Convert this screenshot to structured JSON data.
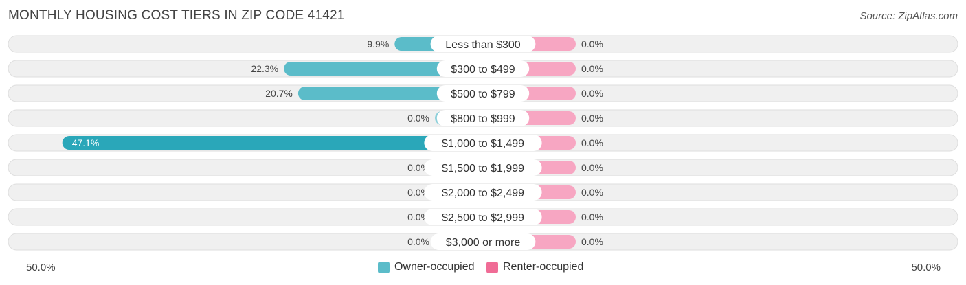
{
  "title": "MONTHLY HOUSING COST TIERS IN ZIP CODE 41421",
  "source": "Source: ZipAtlas.com",
  "axis": {
    "left_label": "50.0%",
    "right_label": "50.0%"
  },
  "legend": {
    "owner_label": "Owner-occupied",
    "renter_label": "Renter-occupied"
  },
  "colors": {
    "owner": "#5bbcc9",
    "owner_dark": "#2aa7b9",
    "owner_light": "#8dd0da",
    "renter": "#f7a6c2",
    "renter_swatch": "#f06c96",
    "row_bg": "#f0f0f0",
    "row_border": "#dedede"
  },
  "chart_data": {
    "type": "bar",
    "orientation": "horizontal-diverging",
    "title": "MONTHLY HOUSING COST TIERS IN ZIP CODE 41421",
    "xlim": [
      -50,
      50
    ],
    "categories": [
      "Less than $300",
      "$300 to $499",
      "$500 to $799",
      "$800 to $999",
      "$1,000 to $1,499",
      "$1,500 to $1,999",
      "$2,000 to $2,499",
      "$2,500 to $2,999",
      "$3,000 or more"
    ],
    "series": [
      {
        "name": "Owner-occupied",
        "values": [
          9.9,
          22.3,
          20.7,
          0.0,
          47.1,
          0.0,
          0.0,
          0.0,
          0.0
        ],
        "labels": [
          "9.9%",
          "22.3%",
          "20.7%",
          "0.0%",
          "47.1%",
          "0.0%",
          "0.0%",
          "0.0%",
          "0.0%"
        ]
      },
      {
        "name": "Renter-occupied",
        "values": [
          0.0,
          0.0,
          0.0,
          0.0,
          0.0,
          0.0,
          0.0,
          0.0,
          0.0
        ],
        "labels": [
          "0.0%",
          "0.0%",
          "0.0%",
          "0.0%",
          "0.0%",
          "0.0%",
          "0.0%",
          "0.0%",
          "0.0%"
        ]
      }
    ],
    "legend_position": "bottom-center"
  }
}
